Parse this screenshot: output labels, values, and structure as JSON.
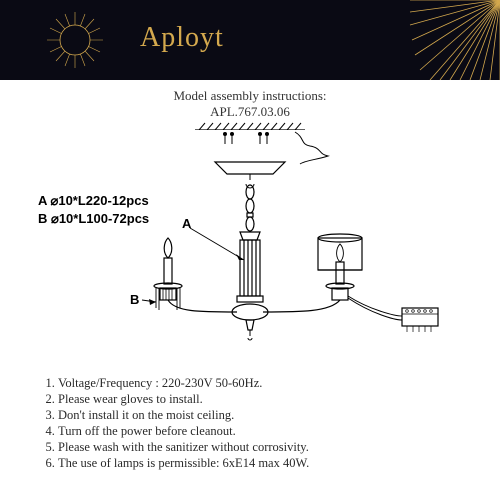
{
  "header": {
    "brand": "Aployt",
    "bg_color": "#0a0a14",
    "accent_color": "#d4a94e"
  },
  "title": {
    "line1": "Model assembly instructions:",
    "line2": "APL.767.03.06"
  },
  "parts": {
    "a": "A  ⌀10*L220-12pcs",
    "b": "B  ⌀10*L100-72pcs"
  },
  "callouts": {
    "a": "A",
    "b": "B"
  },
  "instructions": [
    "Voltage/Frequency : 220-230V 50-60Hz.",
    "Please wear gloves to install.",
    "Don't install it on the moist ceiling.",
    "Turn off the power before cleanout.",
    "Please wash with the sanitizer without corrosivity.",
    "The use of lamps is permissible: 6xE14 max 40W."
  ],
  "diagram_style": {
    "stroke": "#000000",
    "stroke_width": 1.2,
    "fill": "none"
  }
}
